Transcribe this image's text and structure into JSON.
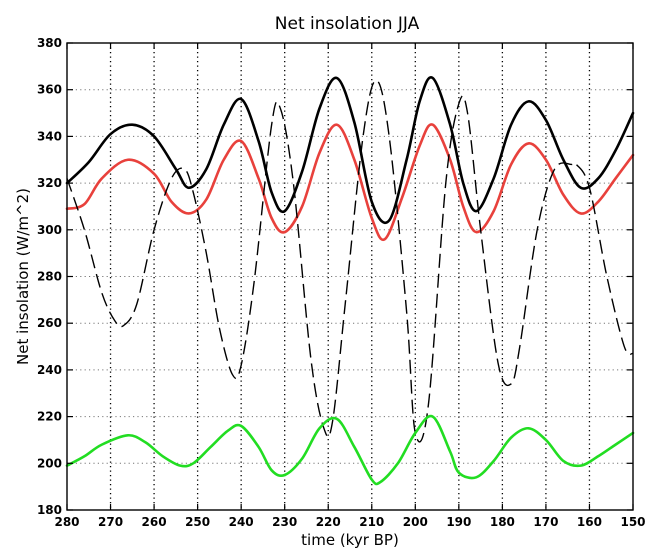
{
  "chart_data": {
    "type": "line",
    "title": "Net insolation JJA",
    "xlabel": "time (kyr BP)",
    "ylabel": "Net insolation (W/m^2)",
    "xlim": [
      280,
      150
    ],
    "ylim": [
      180,
      380
    ],
    "x_reversed": true,
    "x_ticks": [
      280,
      270,
      260,
      250,
      240,
      230,
      220,
      210,
      200,
      190,
      180,
      170,
      160,
      150
    ],
    "y_ticks": [
      180,
      200,
      220,
      240,
      260,
      280,
      300,
      320,
      340,
      360,
      380
    ],
    "grid": {
      "x": "dotted",
      "y": "dotted"
    },
    "legend": "none",
    "series": [
      {
        "color": "#000000",
        "style": "solid",
        "x": [
          280,
          275,
          270,
          265,
          260,
          255,
          252,
          248,
          244,
          240,
          236,
          233,
          230,
          226,
          222,
          218,
          214,
          210,
          206,
          202,
          199,
          196,
          192,
          189,
          186,
          182,
          178,
          174,
          170,
          166,
          162,
          158,
          154,
          150
        ],
        "values": [
          320,
          329,
          341,
          345,
          340,
          326,
          318,
          326,
          345,
          356,
          338,
          316,
          308,
          325,
          352,
          365,
          346,
          312,
          304,
          330,
          355,
          365,
          345,
          320,
          308,
          322,
          345,
          355,
          347,
          330,
          318,
          322,
          334,
          350
        ]
      },
      {
        "color": "#e8413c",
        "style": "solid",
        "x": [
          280,
          276,
          272,
          266,
          260,
          256,
          252,
          248,
          244,
          240,
          236,
          233,
          230,
          226,
          222,
          218,
          214,
          210,
          207,
          203,
          199,
          196,
          192,
          189,
          186,
          182,
          178,
          174,
          170,
          166,
          162,
          158,
          154,
          150
        ],
        "values": [
          309,
          311,
          322,
          330,
          324,
          312,
          307,
          313,
          330,
          338,
          322,
          305,
          299,
          310,
          333,
          345,
          330,
          305,
          296,
          314,
          336,
          345,
          330,
          310,
          299,
          308,
          328,
          337,
          330,
          315,
          307,
          312,
          322,
          332
        ]
      },
      {
        "color": "#000000",
        "style": "dashed",
        "x": [
          280,
          276,
          272,
          269,
          267,
          264,
          260,
          256,
          253,
          251,
          248,
          245,
          242,
          240,
          237,
          233,
          231,
          228,
          224,
          221,
          219,
          216,
          212,
          209,
          206,
          202,
          200,
          197,
          193,
          190,
          188,
          185,
          181,
          178,
          176,
          172,
          168,
          164,
          163,
          160,
          156,
          152,
          150
        ],
        "values": [
          322,
          300,
          273,
          261,
          259,
          268,
          300,
          322,
          326,
          316,
          290,
          258,
          238,
          242,
          278,
          345,
          352,
          320,
          245,
          215,
          218,
          270,
          340,
          364,
          340,
          265,
          213,
          225,
          320,
          354,
          350,
          300,
          243,
          234,
          250,
          300,
          326,
          328,
          328,
          318,
          280,
          250,
          247
        ]
      },
      {
        "color": "#22dd22",
        "style": "solid",
        "x": [
          280,
          276,
          272,
          266,
          262,
          258,
          254,
          251,
          247,
          243,
          240,
          236,
          233,
          230,
          226,
          222,
          218,
          214,
          210,
          208,
          204,
          200,
          196,
          192,
          190,
          186,
          182,
          178,
          174,
          170,
          166,
          162,
          158,
          154,
          150
        ],
        "values": [
          199,
          203,
          208,
          212,
          209,
          203,
          199,
          200,
          207,
          214,
          216,
          207,
          197,
          195,
          202,
          215,
          219,
          207,
          193,
          192,
          200,
          213,
          220,
          205,
          196,
          194,
          201,
          211,
          215,
          210,
          201,
          199,
          203,
          208,
          213
        ]
      }
    ]
  }
}
